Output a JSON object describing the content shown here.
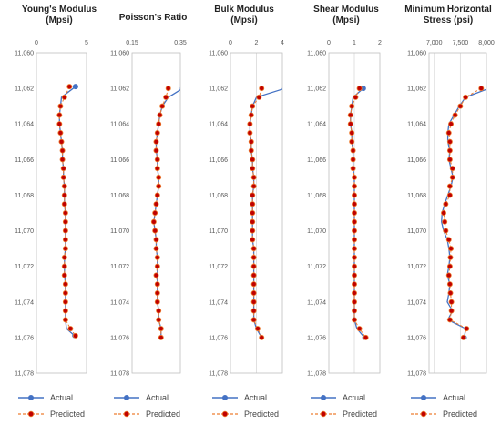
{
  "chart_data": [
    {
      "type": "line",
      "title_lines": [
        "Young's Modulus",
        "(Mpsi)"
      ],
      "xlim": [
        0,
        5
      ],
      "xticks": [
        0,
        5
      ],
      "ylim": [
        11060,
        11078
      ],
      "yticks": [
        "11,060",
        "11,062",
        "11,064",
        "11,066",
        "11,068",
        "11,070",
        "11,072",
        "11,074",
        "11,076",
        "11,078"
      ],
      "depth": [
        11061.9,
        11062.5,
        11063.0,
        11063.5,
        11064.0,
        11064.5,
        11065.0,
        11065.5,
        11066.0,
        11066.5,
        11067.0,
        11067.5,
        11068.0,
        11068.5,
        11069.0,
        11069.5,
        11070.0,
        11070.5,
        11071.0,
        11071.5,
        11072.0,
        11072.5,
        11073.0,
        11073.5,
        11074.0,
        11074.5,
        11075.0,
        11075.5,
        11075.9
      ],
      "series": [
        {
          "name": "Actual",
          "values": [
            3.9,
            2.5,
            2.4,
            2.3,
            2.3,
            2.4,
            2.5,
            2.6,
            2.6,
            2.7,
            2.7,
            2.8,
            2.8,
            2.8,
            2.9,
            2.9,
            2.9,
            2.9,
            2.9,
            2.8,
            2.8,
            2.8,
            2.9,
            2.9,
            2.9,
            2.9,
            2.9,
            3.0,
            3.8
          ]
        },
        {
          "name": "Predicted",
          "values": [
            3.3,
            2.8,
            2.4,
            2.3,
            2.3,
            2.4,
            2.5,
            2.6,
            2.6,
            2.7,
            2.7,
            2.8,
            2.8,
            2.8,
            2.9,
            2.9,
            2.9,
            2.9,
            2.9,
            2.8,
            2.8,
            2.8,
            2.9,
            2.9,
            2.9,
            2.9,
            2.9,
            3.4,
            3.9
          ]
        }
      ]
    },
    {
      "type": "line",
      "title_lines": [
        "Poisson's Ratio"
      ],
      "xlim": [
        0.15,
        0.35
      ],
      "xticks": [
        0.15,
        0.35
      ],
      "ylim": [
        11060,
        11078
      ],
      "yticks": [
        "11,060",
        "11,062",
        "11,064",
        "11,066",
        "11,068",
        "11,070",
        "11,072",
        "11,074",
        "11,076",
        "11,078"
      ],
      "depth": [
        11062.0,
        11062.5,
        11063.0,
        11063.5,
        11064.0,
        11064.5,
        11065.0,
        11065.5,
        11066.0,
        11066.5,
        11067.0,
        11067.5,
        11068.0,
        11068.5,
        11069.0,
        11069.5,
        11070.0,
        11070.5,
        11071.0,
        11071.5,
        11072.0,
        11072.5,
        11073.0,
        11073.5,
        11074.0,
        11074.5,
        11075.0,
        11075.5,
        11076.0
      ],
      "series": [
        {
          "name": "Actual",
          "values": [
            0.36,
            0.3,
            0.275,
            0.265,
            0.26,
            0.255,
            0.25,
            0.25,
            0.255,
            0.255,
            0.26,
            0.26,
            0.255,
            0.25,
            0.245,
            0.24,
            0.245,
            0.25,
            0.25,
            0.255,
            0.255,
            0.255,
            0.255,
            0.255,
            0.255,
            0.26,
            0.26,
            0.27,
            0.27
          ]
        },
        {
          "name": "Predicted",
          "values": [
            0.3,
            0.29,
            0.275,
            0.265,
            0.26,
            0.255,
            0.25,
            0.25,
            0.255,
            0.255,
            0.26,
            0.26,
            0.255,
            0.25,
            0.245,
            0.24,
            0.245,
            0.25,
            0.25,
            0.255,
            0.255,
            0.25,
            0.255,
            0.255,
            0.255,
            0.26,
            0.26,
            0.27,
            0.27
          ]
        }
      ]
    },
    {
      "type": "line",
      "title_lines": [
        "Bulk Modulus",
        "(Mpsi)"
      ],
      "xlim": [
        0,
        4
      ],
      "xticks": [
        0,
        2,
        4
      ],
      "ylim": [
        11060,
        11078
      ],
      "yticks": [
        "11,060",
        "11,062",
        "11,064",
        "11,066",
        "11,068",
        "11,070",
        "11,072",
        "11,074",
        "11,076",
        "11,078"
      ],
      "depth": [
        11062.0,
        11062.5,
        11063.0,
        11063.5,
        11064.0,
        11064.5,
        11065.0,
        11065.5,
        11066.0,
        11066.5,
        11067.0,
        11067.5,
        11068.0,
        11068.5,
        11069.0,
        11069.5,
        11070.0,
        11070.5,
        11071.0,
        11071.5,
        11072.0,
        11072.5,
        11073.0,
        11073.5,
        11074.0,
        11074.5,
        11075.0,
        11075.5,
        11076.0
      ],
      "series": [
        {
          "name": "Actual",
          "values": [
            4.2,
            2.0,
            1.7,
            1.6,
            1.5,
            1.5,
            1.6,
            1.6,
            1.7,
            1.7,
            1.8,
            1.8,
            1.7,
            1.7,
            1.7,
            1.7,
            1.7,
            1.7,
            1.8,
            1.8,
            1.8,
            1.8,
            1.8,
            1.8,
            1.8,
            1.8,
            1.8,
            2.0,
            2.4
          ]
        },
        {
          "name": "Predicted",
          "values": [
            2.4,
            2.2,
            1.7,
            1.6,
            1.5,
            1.5,
            1.6,
            1.6,
            1.7,
            1.7,
            1.8,
            1.8,
            1.7,
            1.7,
            1.7,
            1.7,
            1.7,
            1.7,
            1.8,
            1.8,
            1.8,
            1.8,
            1.8,
            1.8,
            1.8,
            1.8,
            1.8,
            2.1,
            2.4
          ]
        }
      ]
    },
    {
      "type": "line",
      "title_lines": [
        "Shear Modulus",
        "(Mpsi)"
      ],
      "xlim": [
        0,
        2
      ],
      "xticks": [
        0,
        1,
        2
      ],
      "ylim": [
        11060,
        11078
      ],
      "yticks": [
        "11,060",
        "11,062",
        "11,064",
        "11,066",
        "11,068",
        "11,070",
        "11,072",
        "11,074",
        "11,076",
        "11,078"
      ],
      "depth": [
        11062.0,
        11062.5,
        11063.0,
        11063.5,
        11064.0,
        11064.5,
        11065.0,
        11065.5,
        11066.0,
        11066.5,
        11067.0,
        11067.5,
        11068.0,
        11068.5,
        11069.0,
        11069.5,
        11070.0,
        11070.5,
        11071.0,
        11071.5,
        11072.0,
        11072.5,
        11073.0,
        11073.5,
        11074.0,
        11074.5,
        11075.0,
        11075.5,
        11076.0
      ],
      "series": [
        {
          "name": "Actual",
          "values": [
            1.35,
            0.95,
            0.9,
            0.85,
            0.85,
            0.9,
            0.9,
            0.95,
            0.95,
            0.95,
            1.0,
            1.0,
            1.0,
            1.0,
            1.0,
            1.0,
            1.0,
            1.0,
            1.0,
            1.0,
            1.0,
            1.0,
            1.0,
            1.0,
            1.0,
            1.0,
            1.0,
            1.1,
            1.4
          ]
        },
        {
          "name": "Predicted",
          "values": [
            1.2,
            1.05,
            0.9,
            0.85,
            0.85,
            0.9,
            0.9,
            0.95,
            0.95,
            0.95,
            1.0,
            1.0,
            1.0,
            1.0,
            1.0,
            1.0,
            1.0,
            1.0,
            1.0,
            1.0,
            1.0,
            1.0,
            1.0,
            1.0,
            1.0,
            1.0,
            1.0,
            1.2,
            1.45
          ]
        }
      ]
    },
    {
      "type": "line",
      "title_lines": [
        "Minimum Horizontal",
        "Stress (psi)"
      ],
      "xlim": [
        6900,
        8000
      ],
      "xticks": [
        7000,
        7500,
        8000
      ],
      "ylim": [
        11060,
        11078
      ],
      "yticks": [
        "11,060",
        "11,062",
        "11,064",
        "11,066",
        "11,068",
        "11,070",
        "11,072",
        "11,074",
        "11,076",
        "11,078"
      ],
      "depth": [
        11062.0,
        11062.5,
        11063.0,
        11063.5,
        11064.0,
        11064.5,
        11065.0,
        11065.5,
        11066.0,
        11066.5,
        11067.0,
        11067.5,
        11068.0,
        11068.5,
        11069.0,
        11069.5,
        11070.0,
        11070.5,
        11071.0,
        11071.5,
        11072.0,
        11072.5,
        11073.0,
        11073.5,
        11074.0,
        11074.5,
        11075.0,
        11075.5,
        11076.0
      ],
      "series": [
        {
          "name": "Actual",
          "values": [
            8050,
            7600,
            7480,
            7380,
            7280,
            7260,
            7260,
            7300,
            7280,
            7320,
            7360,
            7320,
            7260,
            7200,
            7150,
            7140,
            7180,
            7250,
            7280,
            7300,
            7280,
            7250,
            7300,
            7280,
            7250,
            7350,
            7260,
            7600,
            7580
          ]
        },
        {
          "name": "Predicted",
          "values": [
            7900,
            7600,
            7500,
            7400,
            7320,
            7280,
            7300,
            7300,
            7300,
            7350,
            7350,
            7300,
            7300,
            7220,
            7180,
            7200,
            7220,
            7280,
            7320,
            7310,
            7300,
            7280,
            7300,
            7310,
            7330,
            7330,
            7300,
            7620,
            7560
          ]
        }
      ]
    }
  ],
  "legend": {
    "actual": "Actual",
    "predicted": "Predicted"
  },
  "colors": {
    "actual": "#4472c4",
    "predicted_line": "#ed7d31",
    "predicted_marker": "#c00000"
  }
}
